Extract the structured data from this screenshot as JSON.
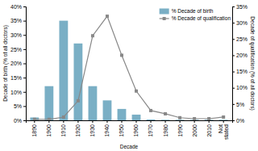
{
  "chart_data": {
    "type": "bar",
    "categories": [
      "1890",
      "1900",
      "1910",
      "1920",
      "1930",
      "1940",
      "1950",
      "1960",
      "1970",
      "1980",
      "1990",
      "2000",
      "2010",
      "Not\nstated"
    ],
    "xlabel": "Decade",
    "ylabel": "Decade of birth (% of all doctors)",
    "y2label": "Decade of qualification (% of all doctors)",
    "ylim": [
      0,
      40
    ],
    "yticks": [
      {
        "value": 0,
        "label": "0%"
      },
      {
        "value": 5,
        "label": "5%"
      },
      {
        "value": 10,
        "label": "10%"
      },
      {
        "value": 15,
        "label": "15%"
      },
      {
        "value": 20,
        "label": "20%"
      },
      {
        "value": 25,
        "label": "25%"
      },
      {
        "value": 30,
        "label": "30%"
      },
      {
        "value": 35,
        "label": "35%"
      },
      {
        "value": 40,
        "label": "40%"
      }
    ],
    "y2lim": [
      0,
      35
    ],
    "y2ticks": [
      {
        "value": 0,
        "label": "0%"
      },
      {
        "value": 5,
        "label": "5%"
      },
      {
        "value": 10,
        "label": "10%"
      },
      {
        "value": 15,
        "label": "15%"
      },
      {
        "value": 20,
        "label": "20%"
      },
      {
        "value": 25,
        "label": "25%"
      },
      {
        "value": 30,
        "label": "30%"
      },
      {
        "value": 35,
        "label": "35%"
      }
    ],
    "grid": false,
    "legend": "upper right",
    "series": [
      {
        "name": "% Decade of birth",
        "type": "bar",
        "color": "#7aafc5",
        "values": [
          1,
          12,
          35,
          27,
          12,
          7,
          4,
          2,
          0.3,
          0.2,
          0.2,
          0.2,
          0.2,
          0.2
        ]
      },
      {
        "name": "% Decade of qualification",
        "type": "line",
        "axis": "y2",
        "color": "#888888",
        "marker": "square",
        "values": [
          0.3,
          0.3,
          1,
          6,
          26,
          32,
          20,
          9,
          3,
          2,
          0.8,
          0.5,
          0.5,
          1
        ]
      }
    ]
  }
}
